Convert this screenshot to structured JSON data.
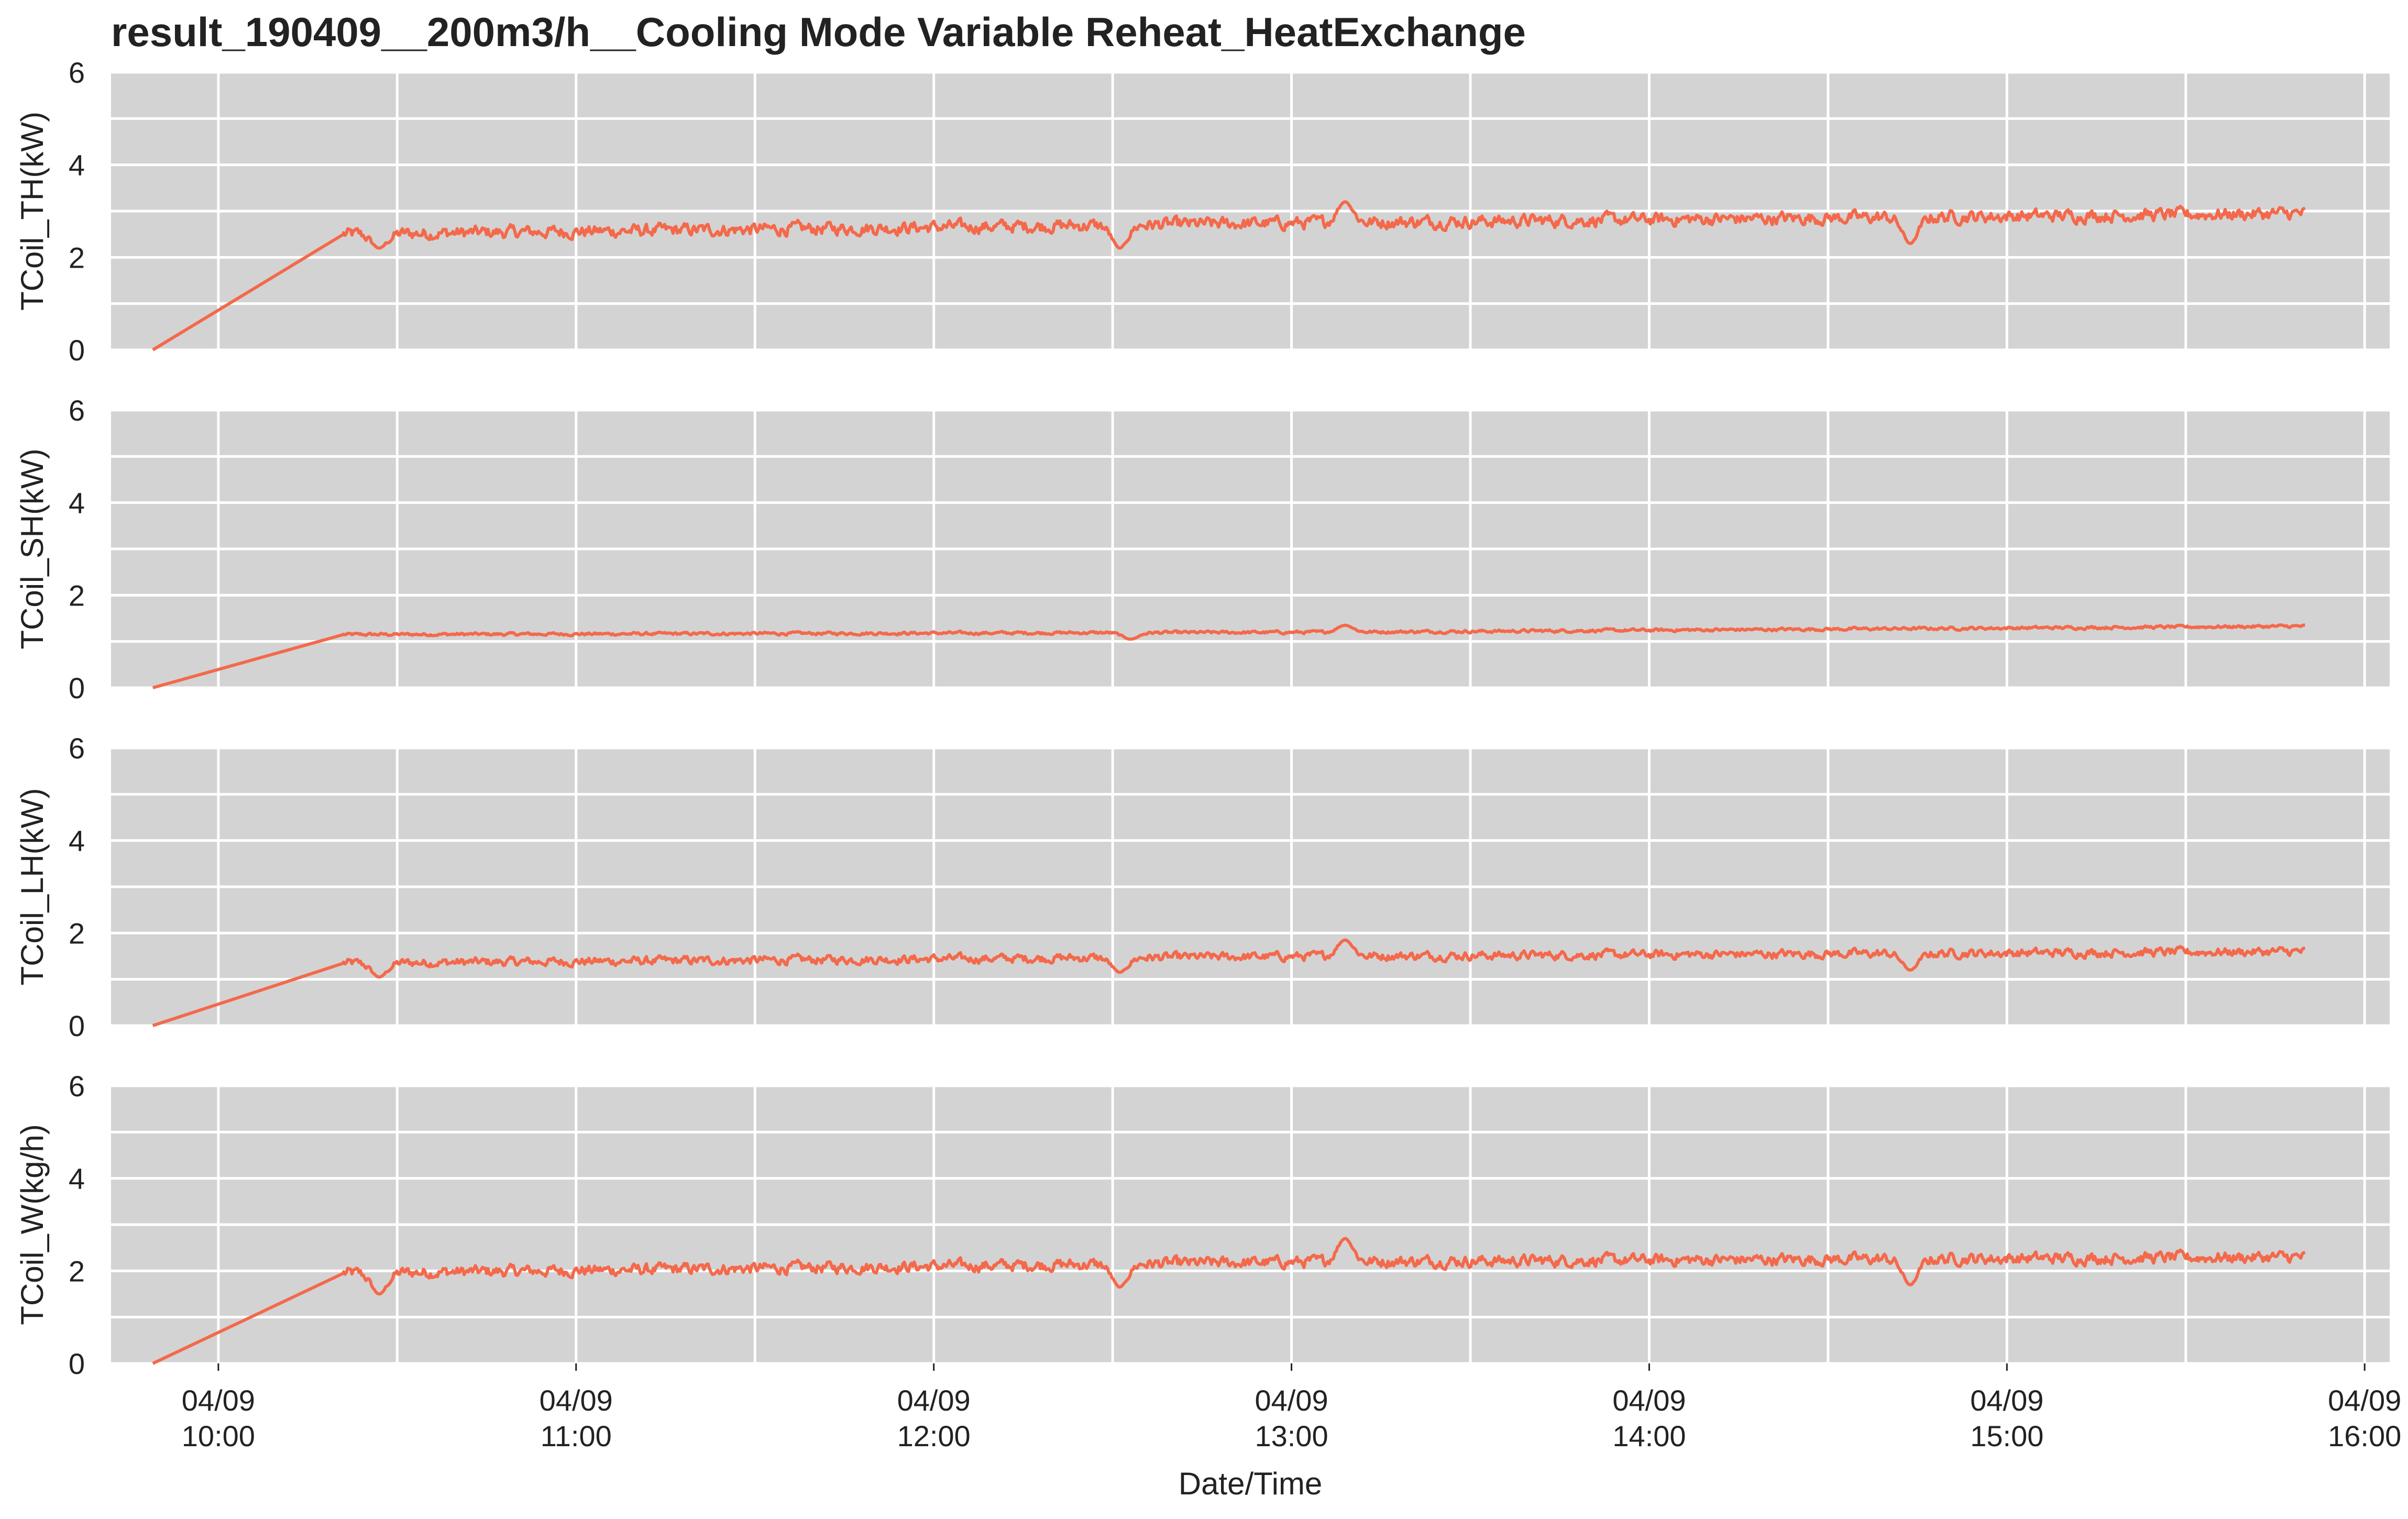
{
  "title": "result_190409__200m3/h__Cooling Mode Variable Reheat_HeatExchange",
  "xlabel": "Date/Time",
  "colors": {
    "line": "#f4694b",
    "panel": "#d3d3d3",
    "grid": "#ffffff",
    "text": "#222222"
  },
  "chart_data": [
    {
      "type": "line",
      "ylabel": "TCoil_TH(kW)",
      "ylim": [
        0,
        6
      ],
      "yticks": [
        "0",
        "2",
        "4",
        "6"
      ],
      "grid": true,
      "series": [
        {
          "x_start": "09:49",
          "x_ramp_end": "10:21",
          "x_end": "15:50",
          "ramp_from": 0,
          "level_start": 2.5,
          "level_mid": 2.75,
          "level_end": 2.95,
          "noise": 0.22,
          "dips": [
            [
              10.45,
              2.2
            ],
            [
              12.52,
              2.2
            ],
            [
              14.73,
              2.3
            ]
          ],
          "peaks": [
            [
              13.15,
              3.2
            ]
          ]
        }
      ]
    },
    {
      "type": "line",
      "ylabel": "TCoil_SH(kW)",
      "ylim": [
        0,
        6
      ],
      "yticks": [
        "0",
        "2",
        "4",
        "6"
      ],
      "grid": true,
      "series": [
        {
          "x_start": "09:49",
          "x_ramp_end": "10:21",
          "x_end": "15:50",
          "ramp_from": 0,
          "level_start": 1.15,
          "level_mid": 1.2,
          "level_end": 1.33,
          "noise": 0.05,
          "dips": [
            [
              12.55,
              1.05
            ]
          ],
          "peaks": [
            [
              13.15,
              1.35
            ]
          ]
        }
      ]
    },
    {
      "type": "line",
      "ylabel": "TCoil_LH(kW)",
      "ylim": [
        0,
        6
      ],
      "yticks": [
        "0",
        "2",
        "4",
        "6"
      ],
      "grid": true,
      "series": [
        {
          "x_start": "09:49",
          "x_ramp_end": "10:21",
          "x_end": "15:50",
          "ramp_from": 0,
          "level_start": 1.35,
          "level_mid": 1.5,
          "level_end": 1.6,
          "noise": 0.15,
          "dips": [
            [
              10.45,
              1.05
            ],
            [
              12.52,
              1.15
            ],
            [
              14.73,
              1.2
            ]
          ],
          "peaks": [
            [
              13.15,
              1.85
            ]
          ]
        }
      ]
    },
    {
      "type": "line",
      "ylabel": "TCoil_W(kg/h)",
      "ylim": [
        0,
        6
      ],
      "yticks": [
        "0",
        "2",
        "4",
        "6"
      ],
      "grid": true,
      "series": [
        {
          "x_start": "09:49",
          "x_ramp_end": "10:21",
          "x_end": "15:50",
          "ramp_from": 0,
          "level_start": 1.95,
          "level_mid": 2.2,
          "level_end": 2.3,
          "noise": 0.2,
          "dips": [
            [
              10.45,
              1.5
            ],
            [
              12.52,
              1.65
            ],
            [
              14.73,
              1.7
            ]
          ],
          "peaks": [
            [
              13.15,
              2.7
            ]
          ]
        }
      ]
    }
  ],
  "xticks": [
    {
      "date": "04/09",
      "time": "10:00"
    },
    {
      "date": "04/09",
      "time": "11:00"
    },
    {
      "date": "04/09",
      "time": "12:00"
    },
    {
      "date": "04/09",
      "time": "13:00"
    },
    {
      "date": "04/09",
      "time": "14:00"
    },
    {
      "date": "04/09",
      "time": "15:00"
    },
    {
      "date": "04/09",
      "time": "16:00"
    }
  ]
}
